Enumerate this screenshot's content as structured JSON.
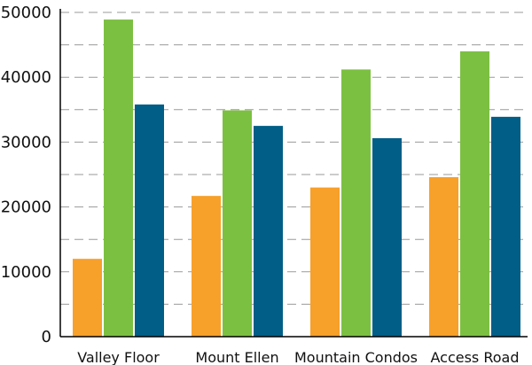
{
  "chart_data": {
    "type": "bar",
    "categories": [
      "Valley Floor",
      "Mount Ellen",
      "Mountain Condos",
      "Access Road"
    ],
    "series": [
      {
        "color": "#f7a02a",
        "values": [
          12000,
          21700,
          23000,
          24600
        ]
      },
      {
        "color": "#7cc042",
        "values": [
          48900,
          34900,
          41200,
          44000
        ]
      },
      {
        "color": "#005e87",
        "values": [
          35800,
          32500,
          30600,
          33900
        ]
      }
    ],
    "ylim": [
      0,
      50000
    ],
    "yticks": [
      0,
      10000,
      20000,
      30000,
      40000,
      50000
    ],
    "gridlines": [
      0,
      5000,
      10000,
      15000,
      20000,
      25000,
      30000,
      35000,
      40000,
      45000,
      50000
    ],
    "grid": true,
    "grid_style": "dashed",
    "legend": false,
    "title": "",
    "xlabel": "",
    "ylabel": ""
  }
}
